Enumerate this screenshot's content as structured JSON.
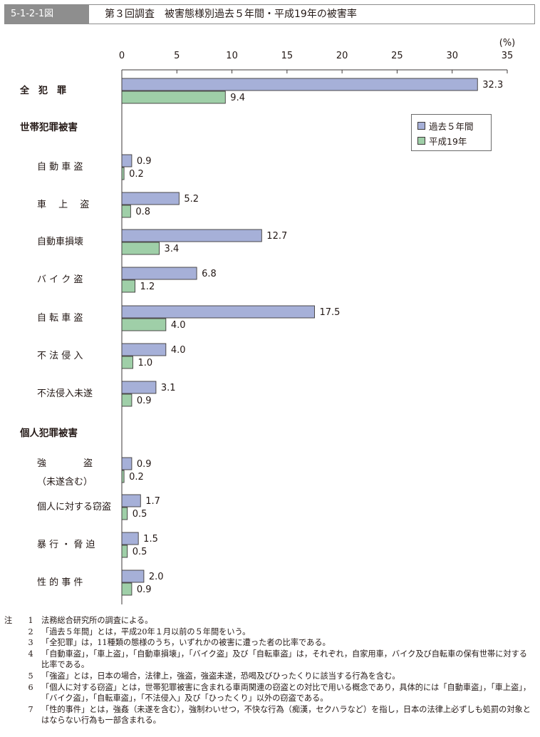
{
  "header": {
    "figure_no": "5-1-2-1図",
    "title": "第３回調査　被害態様別過去５年間・平成19年の被害率"
  },
  "chart_data": {
    "type": "bar",
    "orientation": "horizontal",
    "unit_label": "(%)",
    "xlim": [
      0,
      35
    ],
    "ticks": [
      0,
      5,
      10,
      15,
      20,
      25,
      30,
      35
    ],
    "categories": [
      "全　犯　罪",
      "自 動 車 盗",
      "車　 上 　盗",
      "自動車損壊",
      "バ イ ク 盗",
      "自 転 車 盗",
      "不 法 侵 入",
      "不法侵入未遂",
      "強　　　　盗",
      "個人に対する窃盗",
      "暴 行 ・ 脅 迫",
      "性 的 事 件"
    ],
    "category_sublabels": [
      "",
      "",
      "",
      "",
      "",
      "",
      "",
      "",
      "（未遂含む）",
      "",
      "",
      ""
    ],
    "group_headings": [
      "世帯犯罪被害",
      "個人犯罪被害"
    ],
    "series": [
      {
        "name": "過去５年間",
        "color": "#a6b0d8",
        "values": [
          32.3,
          0.9,
          5.2,
          12.7,
          6.8,
          17.5,
          4.0,
          3.1,
          0.9,
          1.7,
          1.5,
          2.0
        ],
        "labels": [
          "32.3",
          "0.9",
          "5.2",
          "12.7",
          "6.8",
          "17.5",
          "4.0",
          "3.1",
          "0.9",
          "1.7",
          "1.5",
          "2.0"
        ]
      },
      {
        "name": "平成19年",
        "color": "#9fcfa8",
        "values": [
          9.4,
          0.2,
          0.8,
          3.4,
          1.2,
          4.0,
          1.0,
          0.9,
          0.2,
          0.5,
          0.5,
          0.9
        ],
        "labels": [
          "9.4",
          "0.2",
          "0.8",
          "3.4",
          "1.2",
          "4.0",
          "1.0",
          "0.9",
          "0.2",
          "0.5",
          "0.5",
          "0.9"
        ]
      }
    ],
    "legend_position": "top-right",
    "grid": false
  },
  "notes": {
    "prefix": "注",
    "items": [
      {
        "num": "1",
        "text": "法務総合研究所の調査による。"
      },
      {
        "num": "2",
        "text": "「過去５年間」とは，平成20年１月以前の５年間をいう。"
      },
      {
        "num": "3",
        "text": "「全犯罪」は，11種類の態様のうち，いずれかの被害に遭った者の比率である。"
      },
      {
        "num": "4",
        "text": "「自動車盗」，「車上盗」，「自動車損壊」，「バイク盗」及び「自転車盗」は，それぞれ，自家用車，バイク及び自転車の保有世帯に対する比率である。"
      },
      {
        "num": "5",
        "text": "「強盗」とは，日本の場合，法律上，強盗，強盗未遂，恐喝及びひったくりに該当する行為を含む。"
      },
      {
        "num": "6",
        "text": "「個人に対する窃盗」とは，世帯犯罪被害に含まれる車両関連の窃盗との対比で用いる概念であり，具体的には「自動車盗」，「車上盗」，「バイク盗」，「自転車盗」，「不法侵入」及び「ひったくり」以外の窃盗である。"
      },
      {
        "num": "7",
        "text": "「性的事件」とは，強姦（未遂を含む），強制わいせつ，不快な行為（痴漢，セクハラなど）を指し，日本の法律上必ずしも処罰の対象とはならない行為も一部含まれる。"
      }
    ]
  }
}
